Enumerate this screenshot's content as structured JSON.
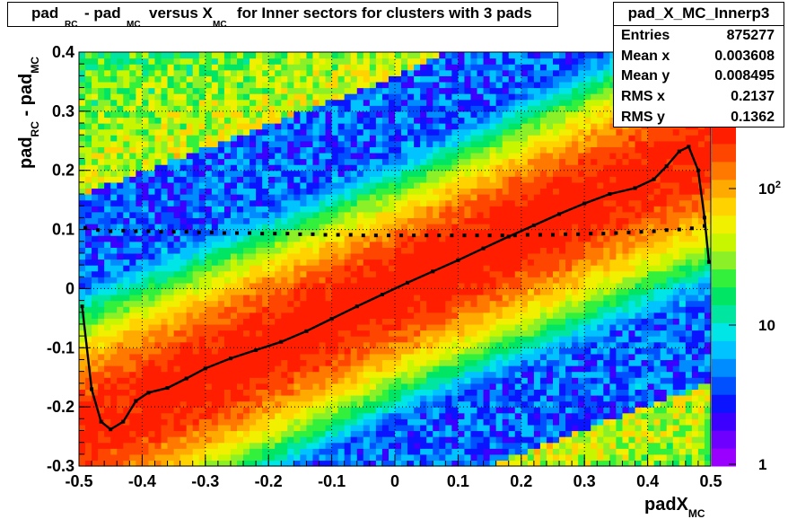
{
  "chart_data": {
    "type": "heatmap",
    "title": "pad_RC - pad_MC versus X_MC for Inner sectors for clusters with 3 pads",
    "title_parts": {
      "w1": "pad",
      "s1": "RC",
      "w2": "- pad",
      "s2": "MC",
      "w3": "versus X",
      "s3": "MC",
      "w4": "for Inner sectors for clusters with 3 pads"
    },
    "xlabel": "padX",
    "xlabel_sub": "MC",
    "ylabel": "pad",
    "ylabel_sub1": "RC",
    "ylabel_mid": "- pad",
    "ylabel_sub2": "MC",
    "xlim": [
      -0.5,
      0.5
    ],
    "ylim": [
      -0.3,
      0.4
    ],
    "x_ticks": [
      "-0.5",
      "-0.4",
      "-0.3",
      "-0.2",
      "-0.1",
      "0",
      "0.1",
      "0.2",
      "0.3",
      "0.4",
      "0.5"
    ],
    "y_ticks": [
      "-0.3",
      "-0.2",
      "-0.1",
      "0",
      "0.1",
      "0.2",
      "0.3",
      "0.4"
    ],
    "z_scale": "log",
    "z_ticks": [
      "1",
      "10",
      "10^2"
    ],
    "grid": true,
    "palette": [
      "#9a00ff",
      "#6e00ff",
      "#3c00ff",
      "#0a14ff",
      "#0050ff",
      "#008cff",
      "#00c3ff",
      "#00e6e6",
      "#00e6a0",
      "#00e664",
      "#32f03c",
      "#8cf028",
      "#c8f500",
      "#f0f000",
      "#ffd200",
      "#ffaa00",
      "#ff7800",
      "#ff4600",
      "#ff1e00"
    ],
    "profile_fit": [
      [
        -0.495,
        -0.03
      ],
      [
        -0.48,
        -0.17
      ],
      [
        -0.465,
        -0.225
      ],
      [
        -0.45,
        -0.238
      ],
      [
        -0.43,
        -0.225
      ],
      [
        -0.41,
        -0.19
      ],
      [
        -0.39,
        -0.176
      ],
      [
        -0.36,
        -0.168
      ],
      [
        -0.33,
        -0.152
      ],
      [
        -0.3,
        -0.135
      ],
      [
        -0.26,
        -0.118
      ],
      [
        -0.22,
        -0.104
      ],
      [
        -0.18,
        -0.09
      ],
      [
        -0.14,
        -0.072
      ],
      [
        -0.1,
        -0.051
      ],
      [
        -0.06,
        -0.03
      ],
      [
        -0.02,
        -0.01
      ],
      [
        0.02,
        0.01
      ],
      [
        0.06,
        0.029
      ],
      [
        0.1,
        0.048
      ],
      [
        0.14,
        0.068
      ],
      [
        0.18,
        0.088
      ],
      [
        0.22,
        0.107
      ],
      [
        0.26,
        0.126
      ],
      [
        0.3,
        0.144
      ],
      [
        0.34,
        0.16
      ],
      [
        0.38,
        0.17
      ],
      [
        0.41,
        0.185
      ],
      [
        0.43,
        0.207
      ],
      [
        0.45,
        0.232
      ],
      [
        0.465,
        0.24
      ],
      [
        0.48,
        0.2
      ],
      [
        0.49,
        0.12
      ],
      [
        0.497,
        0.045
      ]
    ],
    "rms_profile": [
      [
        -0.49,
        0.103
      ],
      [
        -0.47,
        0.099
      ],
      [
        -0.45,
        0.097
      ],
      [
        -0.43,
        0.098
      ],
      [
        -0.41,
        0.097
      ],
      [
        -0.39,
        0.097
      ],
      [
        -0.37,
        0.096
      ],
      [
        -0.35,
        0.096
      ],
      [
        -0.33,
        0.096
      ],
      [
        -0.31,
        0.095
      ],
      [
        -0.29,
        0.095
      ],
      [
        -0.27,
        0.094
      ],
      [
        -0.25,
        0.094
      ],
      [
        -0.23,
        0.094
      ],
      [
        -0.21,
        0.093
      ],
      [
        -0.19,
        0.093
      ],
      [
        -0.17,
        0.093
      ],
      [
        -0.15,
        0.092
      ],
      [
        -0.13,
        0.092
      ],
      [
        -0.11,
        0.091
      ],
      [
        -0.09,
        0.091
      ],
      [
        -0.07,
        0.091
      ],
      [
        -0.05,
        0.09
      ],
      [
        -0.03,
        0.09
      ],
      [
        -0.01,
        0.09
      ],
      [
        0.01,
        0.09
      ],
      [
        0.03,
        0.09
      ],
      [
        0.05,
        0.09
      ],
      [
        0.07,
        0.09
      ],
      [
        0.09,
        0.09
      ],
      [
        0.11,
        0.09
      ],
      [
        0.13,
        0.09
      ],
      [
        0.15,
        0.09
      ],
      [
        0.17,
        0.09
      ],
      [
        0.19,
        0.09
      ],
      [
        0.21,
        0.091
      ],
      [
        0.23,
        0.091
      ],
      [
        0.25,
        0.091
      ],
      [
        0.27,
        0.092
      ],
      [
        0.29,
        0.092
      ],
      [
        0.31,
        0.093
      ],
      [
        0.33,
        0.093
      ],
      [
        0.35,
        0.094
      ],
      [
        0.37,
        0.095
      ],
      [
        0.39,
        0.096
      ],
      [
        0.41,
        0.097
      ],
      [
        0.43,
        0.099
      ],
      [
        0.45,
        0.1
      ],
      [
        0.47,
        0.102
      ],
      [
        0.49,
        0.106
      ]
    ],
    "stats": {
      "name": "pad_X_MC_Innerp3",
      "rows": [
        {
          "label": "Entries",
          "value": "875277"
        },
        {
          "label": "Mean x",
          "value": "0.003608"
        },
        {
          "label": "Mean y",
          "value": "0.008495"
        },
        {
          "label": "RMS x",
          "value": "0.2137"
        },
        {
          "label": "RMS y",
          "value": "0.1362"
        }
      ]
    }
  }
}
